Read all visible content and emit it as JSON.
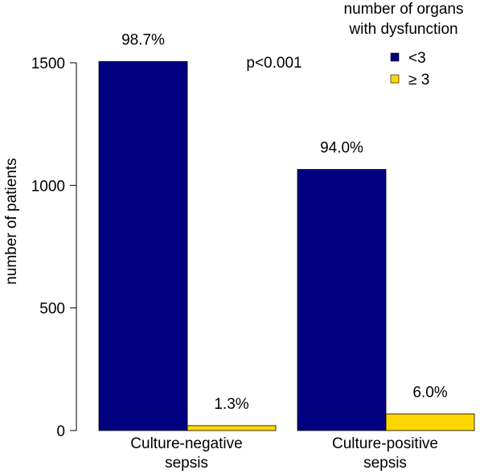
{
  "chart_data": {
    "type": "bar",
    "categories": [
      "Culture-negative sepsis",
      "Culture-positive sepsis"
    ],
    "category_lines": [
      [
        "Culture-negative",
        "sepsis"
      ],
      [
        "Culture-positive",
        "sepsis"
      ]
    ],
    "series": [
      {
        "name": "<3",
        "color": "#000080",
        "values": [
          1505,
          1065
        ],
        "labels": [
          "98.7%",
          "94.0%"
        ]
      },
      {
        "name": "≥ 3",
        "color": "#FFD700",
        "values": [
          20,
          68
        ],
        "labels": [
          "1.3%",
          "6.0%"
        ]
      }
    ],
    "ylabel": "number of patients",
    "ylim": [
      0,
      1500
    ],
    "yticks": [
      0,
      500,
      1000,
      1500
    ],
    "legend_title_lines": [
      "number of organs",
      "with dysfunction"
    ],
    "legend_placement": "top-right",
    "annotation": "p<0.001",
    "grid": false
  }
}
